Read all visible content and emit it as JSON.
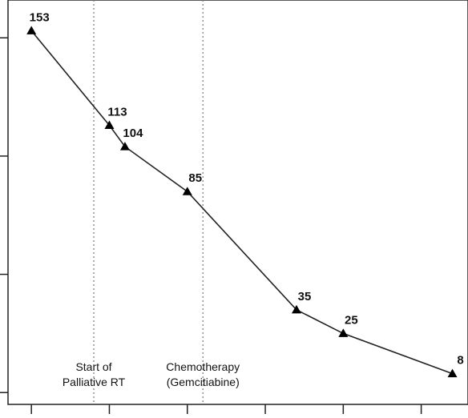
{
  "chart_data": {
    "type": "line",
    "title": "",
    "xlabel": "",
    "ylabel": "",
    "x": [
      0,
      1,
      1.2,
      2,
      3.4,
      4,
      5.4
    ],
    "y": [
      153,
      113,
      104,
      85,
      35,
      25,
      8
    ],
    "point_labels": [
      "153",
      "113",
      "104",
      "85",
      "35",
      "25",
      "8"
    ],
    "marker": "triangle",
    "line_color": "#222222",
    "vlines": [
      {
        "x": 0.8,
        "label_lines": [
          "Start of",
          "Palliative RT"
        ]
      },
      {
        "x": 2.2,
        "label_lines": [
          "Chemotherapy",
          "(Gemcitiabine)"
        ]
      }
    ],
    "x_ticks": [
      0,
      1,
      2,
      3,
      4,
      5
    ],
    "y_ticks": [
      0,
      50,
      100,
      150
    ],
    "xlim": [
      -0.3,
      5.6
    ],
    "ylim": [
      -5,
      166
    ],
    "grid": false
  }
}
